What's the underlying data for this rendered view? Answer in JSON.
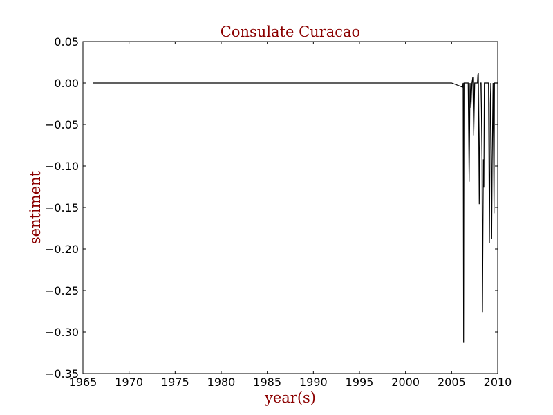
{
  "chart_data": {
    "type": "line",
    "title": "Consulate Curacao",
    "xlabel": "year(s)",
    "ylabel": "sentiment",
    "xlim": [
      1965,
      2010
    ],
    "ylim": [
      -0.35,
      0.05
    ],
    "x_ticks": [
      1965,
      1970,
      1975,
      1980,
      1985,
      1990,
      1995,
      2000,
      2005,
      2010
    ],
    "x_tick_labels": [
      "1965",
      "1970",
      "1975",
      "1980",
      "1985",
      "1990",
      "1995",
      "2000",
      "2005",
      "2010"
    ],
    "y_ticks": [
      0.05,
      0.0,
      -0.05,
      -0.1,
      -0.15,
      -0.2,
      -0.25,
      -0.3,
      -0.35
    ],
    "y_tick_labels": [
      "0.05",
      "0.00",
      "−0.05",
      "−0.10",
      "−0.15",
      "−0.20",
      "−0.25",
      "−0.30",
      "−0.35"
    ],
    "grid": false,
    "series": [
      {
        "name": "sentiment",
        "color": "#000000",
        "x": [
          1966.1,
          2005.0,
          2006.2,
          2006.25,
          2006.3,
          2006.35,
          2006.5,
          2006.8,
          2006.9,
          2007.0,
          2007.1,
          2007.2,
          2007.3,
          2007.4,
          2007.5,
          2007.55,
          2007.6,
          2007.7,
          2007.8,
          2007.85,
          2007.9,
          2008.0,
          2008.1,
          2008.2,
          2008.3,
          2008.35,
          2008.45,
          2008.5,
          2008.55,
          2008.6,
          2008.7,
          2008.8,
          2008.9,
          2009.0,
          2009.1,
          2009.2,
          2009.25,
          2009.35,
          2009.4,
          2009.5,
          2009.6,
          2009.65,
          2009.75,
          2009.8,
          2009.9,
          2010.0
        ],
        "y": [
          0.0,
          0.0,
          -0.005,
          0.0,
          -0.313,
          0.0,
          0.0,
          0.0,
          -0.119,
          0.0,
          -0.03,
          0.0,
          0.007,
          -0.063,
          0.0,
          0.0,
          0.0,
          0.0,
          0.0,
          0.01,
          0.012,
          -0.146,
          0.0,
          0.0,
          -0.092,
          -0.276,
          -0.092,
          -0.126,
          0.0,
          0.0,
          0.0,
          0.0,
          0.0,
          0.0,
          -0.193,
          -0.025,
          0.0,
          -0.188,
          -0.098,
          0.0,
          -0.157,
          0.0,
          0.0,
          0.0,
          0.0,
          0.0
        ]
      }
    ]
  }
}
